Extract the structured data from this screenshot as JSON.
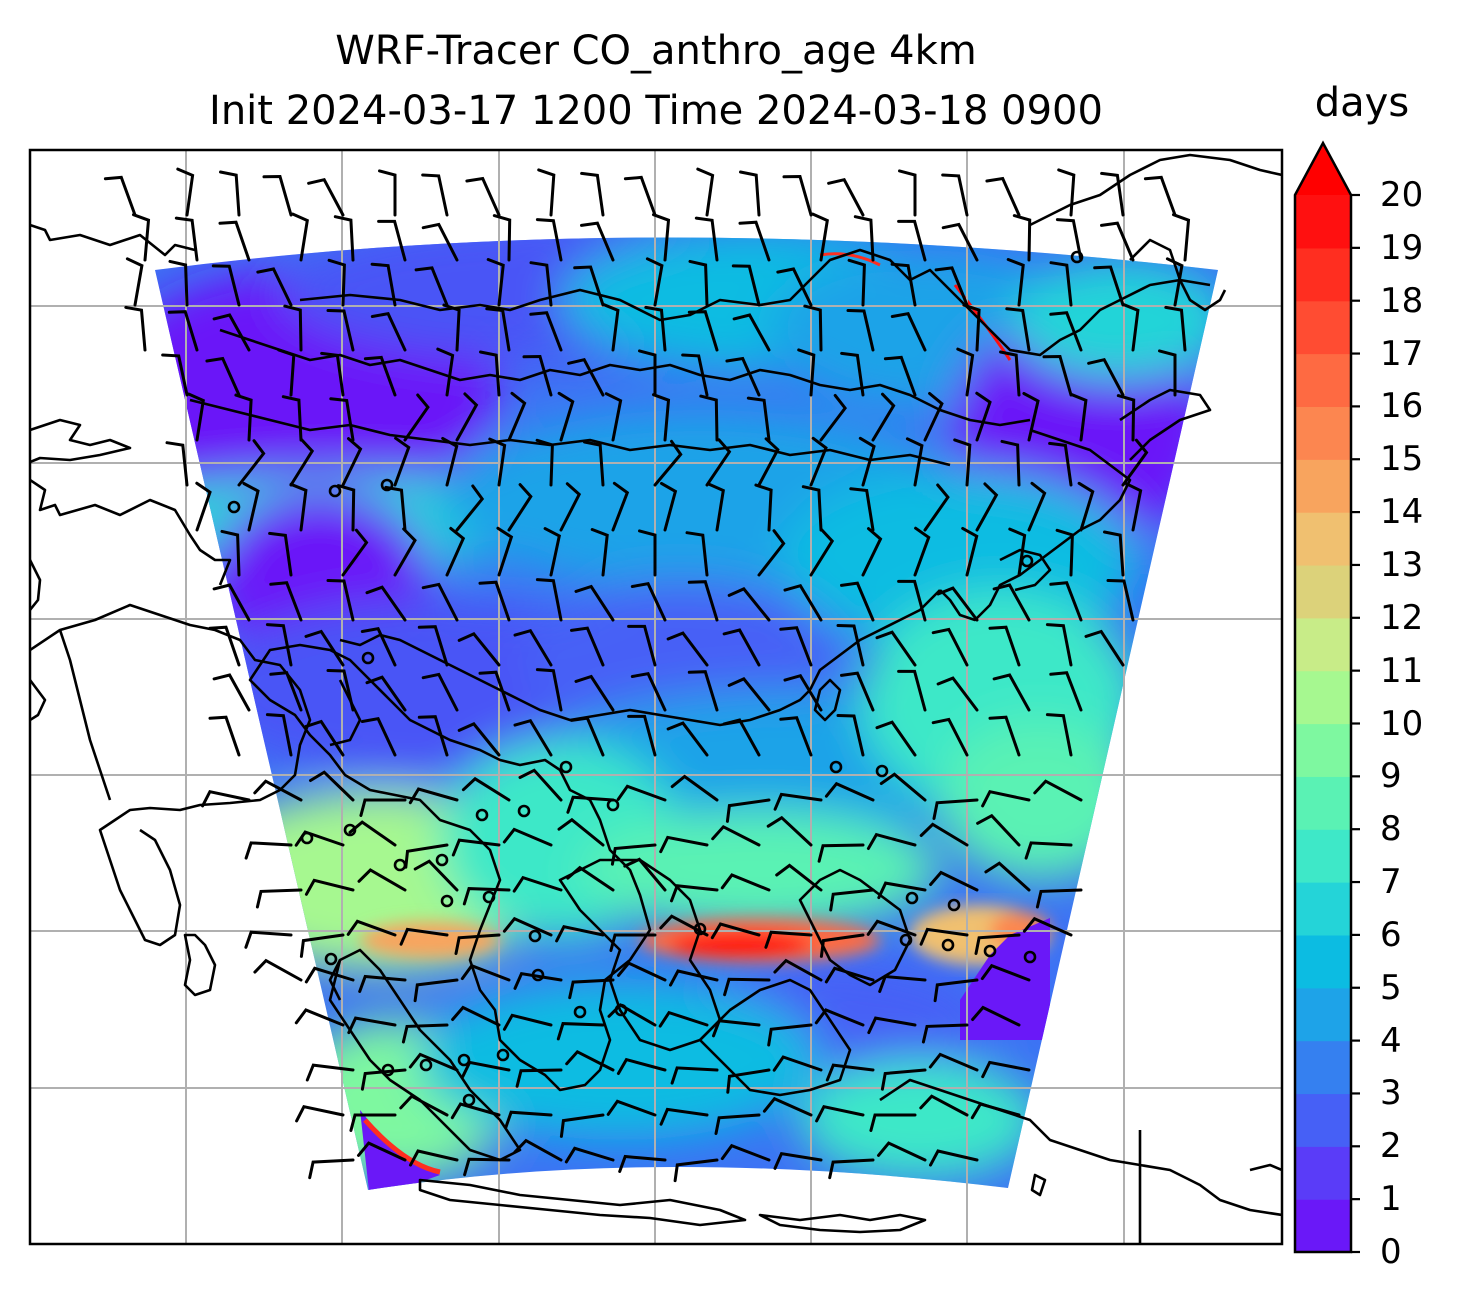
{
  "figure": {
    "title_line1": "WRF-Tracer CO_anthro_age 4km",
    "title_line2": "Init 2024-03-17 1200 Time 2024-03-18 0900"
  },
  "colorbar": {
    "label": "days",
    "ticks": [
      "0",
      "1",
      "2",
      "3",
      "4",
      "5",
      "6",
      "7",
      "8",
      "9",
      "10",
      "11",
      "12",
      "13",
      "14",
      "15",
      "16",
      "17",
      "18",
      "19",
      "20"
    ],
    "extend": "max",
    "colors": [
      "#6a18f8",
      "#5a3cf8",
      "#4660f6",
      "#3580f0",
      "#1ea3e8",
      "#0cbce2",
      "#24d4d8",
      "#3ee8c8",
      "#5af2b4",
      "#7ef8a0",
      "#a6f890",
      "#c8ec88",
      "#dcd27a",
      "#f0c070",
      "#f8a45e",
      "#fc8650",
      "#fe6a42",
      "#ff4c32",
      "#ff2e20",
      "#ff1010"
    ],
    "extend_color": "#ff0000"
  },
  "map": {
    "type": "filled contour with wind barbs",
    "field": "CO_anthro_age",
    "units": "days",
    "gridlines": true,
    "coastlines": true
  }
}
